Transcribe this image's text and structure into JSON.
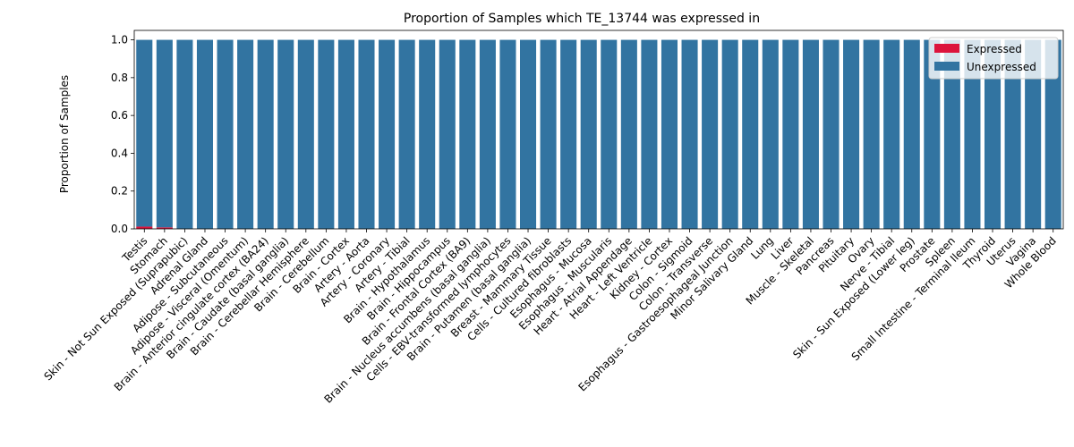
{
  "chart_data": {
    "type": "bar",
    "stacked": true,
    "title": "Proportion of Samples which TE_13744 was expressed in",
    "xlabel": "",
    "ylabel": "Proportion of Samples",
    "ylim": [
      0,
      1.05
    ],
    "yticks": [
      "0.0",
      "0.2",
      "0.4",
      "0.6",
      "0.8",
      "1.0"
    ],
    "legend_position": "top-right",
    "grid": false,
    "categories": [
      "Testis",
      "Stomach",
      "Skin - Not Sun Exposed (Suprapubic)",
      "Adrenal Gland",
      "Adipose - Subcutaneous",
      "Adipose - Visceral (Omentum)",
      "Brain - Anterior cingulate cortex (BA24)",
      "Brain - Caudate (basal ganglia)",
      "Brain - Cerebellar Hemisphere",
      "Brain - Cerebellum",
      "Brain - Cortex",
      "Artery - Aorta",
      "Artery - Coronary",
      "Artery - Tibial",
      "Brain - Hypothalamus",
      "Brain - Hippocampus",
      "Brain - Frontal Cortex (BA9)",
      "Brain - Nucleus accumbens (basal ganglia)",
      "Cells - EBV-transformed lymphocytes",
      "Brain - Putamen (basal ganglia)",
      "Breast - Mammary Tissue",
      "Cells - Cultured fibroblasts",
      "Esophagus - Mucosa",
      "Esophagus - Muscularis",
      "Heart - Atrial Appendage",
      "Heart - Left Ventricle",
      "Kidney - Cortex",
      "Colon - Sigmoid",
      "Colon - Transverse",
      "Esophagus - Gastroesophageal Junction",
      "Minor Salivary Gland",
      "Lung",
      "Liver",
      "Muscle - Skeletal",
      "Pancreas",
      "Pituitary",
      "Ovary",
      "Nerve - Tibial",
      "Skin - Sun Exposed (Lower leg)",
      "Prostate",
      "Spleen",
      "Small Intestine - Terminal Ileum",
      "Thyroid",
      "Uterus",
      "Vagina",
      "Whole Blood"
    ],
    "series": [
      {
        "name": "Expressed",
        "color": "#dc143c",
        "values": [
          0.012,
          0.008,
          0,
          0,
          0,
          0,
          0,
          0,
          0,
          0,
          0,
          0,
          0,
          0,
          0,
          0,
          0,
          0,
          0,
          0,
          0,
          0,
          0,
          0,
          0,
          0,
          0,
          0,
          0,
          0,
          0,
          0,
          0,
          0,
          0,
          0,
          0,
          0,
          0,
          0,
          0,
          0,
          0,
          0,
          0,
          0
        ]
      },
      {
        "name": "Unexpressed",
        "color": "#3274a1",
        "values": [
          0.988,
          0.992,
          1,
          1,
          1,
          1,
          1,
          1,
          1,
          1,
          1,
          1,
          1,
          1,
          1,
          1,
          1,
          1,
          1,
          1,
          1,
          1,
          1,
          1,
          1,
          1,
          1,
          1,
          1,
          1,
          1,
          1,
          1,
          1,
          1,
          1,
          1,
          1,
          1,
          1,
          1,
          1,
          1,
          1,
          1,
          1
        ]
      }
    ]
  }
}
